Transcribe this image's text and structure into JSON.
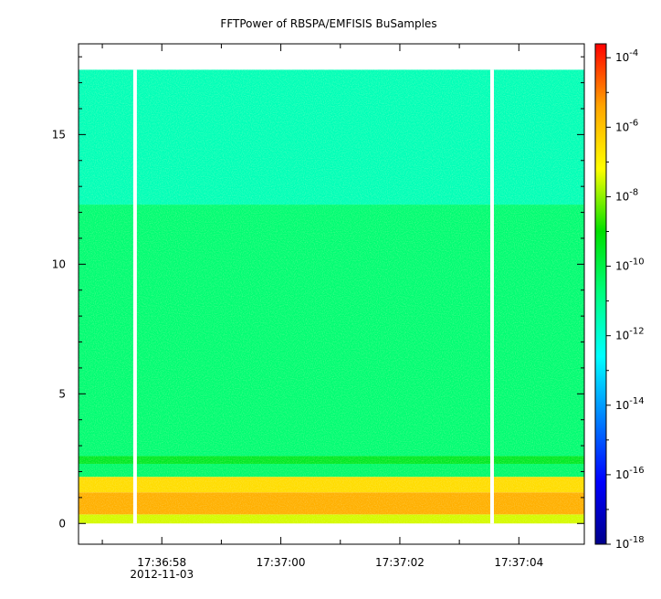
{
  "chart_data": {
    "type": "heatmap",
    "title": "FFTPower of RBSPA/EMFISIS  BuSamples",
    "xlabel": "",
    "ylabel": "",
    "x_range": [
      "17:36:56.6",
      "17:37:05.1"
    ],
    "x_ticks": [
      {
        "value": "17:36:58",
        "label": "17:36:58",
        "sublabel": "2012-11-03"
      },
      {
        "value": "17:37:00",
        "label": "17:37:00",
        "sublabel": ""
      },
      {
        "value": "17:37:02",
        "label": "17:37:02",
        "sublabel": ""
      },
      {
        "value": "17:37:04",
        "label": "17:37:04",
        "sublabel": ""
      }
    ],
    "x_minor_ticks": [
      "17:36:57",
      "17:36:59",
      "17:37:01",
      "17:37:03"
    ],
    "y_range": [
      -0.8,
      18.5
    ],
    "y_ticks": [
      0,
      5,
      10,
      15
    ],
    "data_gaps": [
      "17:36:57.55",
      "17:37:03.55"
    ],
    "data_extent_y": [
      0,
      17.5
    ],
    "spectral_bands": [
      {
        "y": [
          0.0,
          0.35
        ],
        "log10_power": -7.5
      },
      {
        "y": [
          0.35,
          1.2
        ],
        "log10_power": -5.6
      },
      {
        "y": [
          1.2,
          1.8
        ],
        "log10_power": -6.5
      },
      {
        "y": [
          1.8,
          2.3
        ],
        "log10_power": -10.5
      },
      {
        "y": [
          2.3,
          2.6
        ],
        "log10_power": -9.5
      },
      {
        "y": [
          2.6,
          12.3
        ],
        "log10_power": -10.6
      },
      {
        "y": [
          12.3,
          17.5
        ],
        "log10_power": -11.6
      }
    ],
    "colorbar": {
      "scale": "log",
      "range": [
        -18,
        -3.6
      ],
      "tick_exponents": [
        -4,
        -6,
        -8,
        -10,
        -12,
        -14,
        -16,
        -18
      ],
      "base": "10",
      "colormap": [
        "#00008b",
        "#0000ff",
        "#0080ff",
        "#00ffff",
        "#00ff80",
        "#00e000",
        "#ffff00",
        "#ffa500",
        "#ff0000"
      ]
    }
  }
}
